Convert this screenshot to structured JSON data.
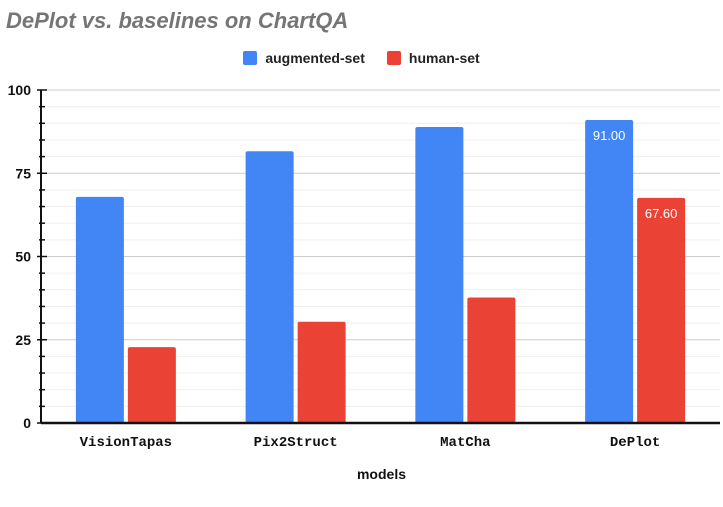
{
  "chart_data": {
    "type": "bar",
    "title": "DePlot vs. baselines on ChartQA",
    "xlabel": "models",
    "ylabel": "",
    "categories": [
      "VisionTapas",
      "Pix2Struct",
      "MatCha",
      "DePlot"
    ],
    "series": [
      {
        "name": "augmented-set",
        "color": "#4285f4",
        "values": [
          67.9,
          81.6,
          88.9,
          91.0
        ]
      },
      {
        "name": "human-set",
        "color": "#ea4335",
        "values": [
          22.8,
          30.4,
          37.7,
          67.6
        ]
      }
    ],
    "data_labels": {
      "DePlot": [
        "91.00",
        "67.60"
      ]
    },
    "ylim": [
      0,
      100
    ],
    "yticks": [
      0,
      25,
      50,
      75,
      100
    ],
    "grid": true,
    "legend_position": "top-center"
  }
}
